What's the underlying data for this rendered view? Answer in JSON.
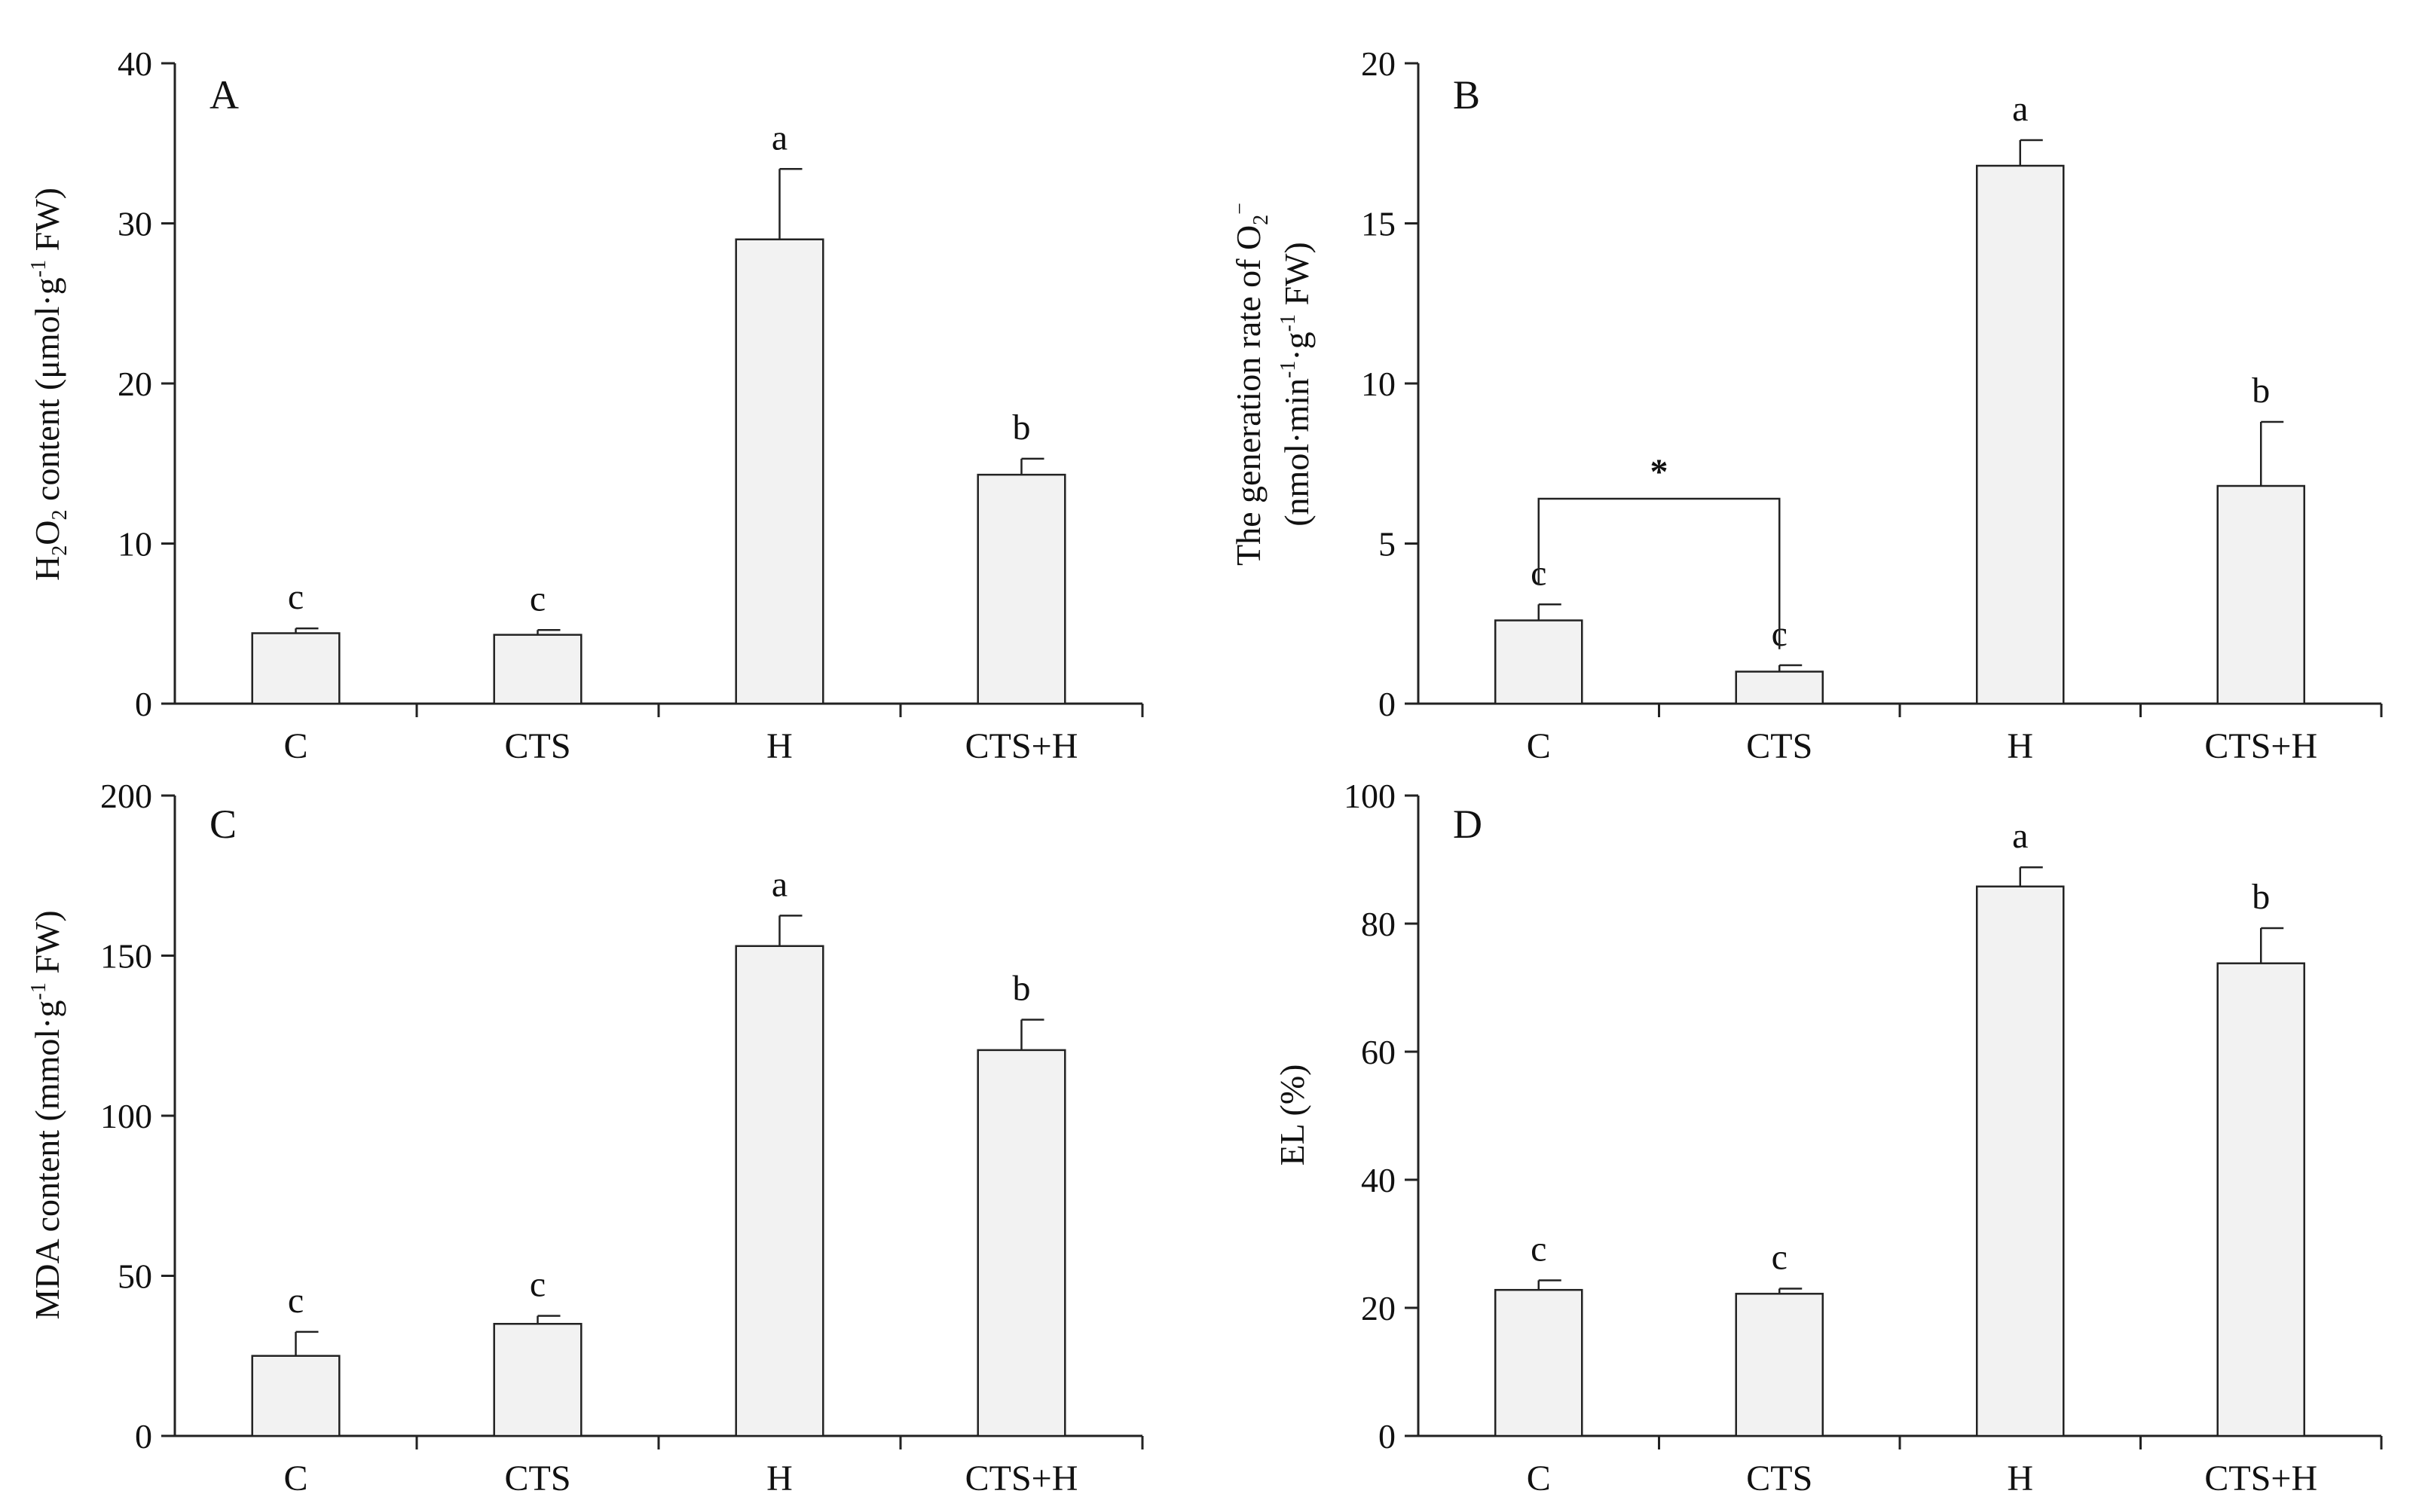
{
  "colors": {
    "bar_fill": "#f2f2f2",
    "stroke": "#222222"
  },
  "chart_data": [
    {
      "panel": "A",
      "type": "bar",
      "categories": [
        "C",
        "CTS",
        "H",
        "CTS+H"
      ],
      "values": [
        4.4,
        4.3,
        29.0,
        14.3
      ],
      "errors": [
        0.3,
        0.3,
        4.4,
        1.0
      ],
      "significance": [
        "c",
        "c",
        "a",
        "b"
      ],
      "ylim": [
        0,
        40
      ],
      "yticks": [
        0,
        10,
        20,
        30,
        40
      ],
      "ylabel": {
        "pre": "H",
        "sub": "2",
        "mid": "O",
        "sub2": "2",
        "post": " content (μmol·g",
        "sup": "-1",
        "end": " FW)"
      }
    },
    {
      "panel": "B",
      "type": "bar",
      "categories": [
        "C",
        "CTS",
        "H",
        "CTS+H"
      ],
      "values": [
        2.6,
        1.0,
        16.8,
        6.8
      ],
      "errors": [
        0.5,
        0.2,
        0.8,
        2.0
      ],
      "significance": [
        "c",
        "c",
        "a",
        "b"
      ],
      "ylim": [
        0,
        20
      ],
      "yticks": [
        0,
        5,
        10,
        15,
        20
      ],
      "bracket": {
        "from": 0,
        "to": 1,
        "label": "*"
      },
      "ylabel_line1": {
        "text": "The generation rate of O",
        "sub": "2",
        "sup": "−"
      },
      "ylabel_line2": {
        "a": "(nmol·min",
        "sup1": "-1",
        "b": "·g",
        "sup2": "-1",
        "c": " FW)"
      }
    },
    {
      "panel": "C",
      "type": "bar",
      "categories": [
        "C",
        "CTS",
        "H",
        "CTS+H"
      ],
      "values": [
        25.0,
        35.0,
        153.0,
        120.5
      ],
      "errors": [
        7.5,
        2.5,
        9.5,
        9.5
      ],
      "significance": [
        "c",
        "c",
        "a",
        "b"
      ],
      "ylim": [
        0,
        200
      ],
      "yticks": [
        0,
        50,
        100,
        150,
        200
      ],
      "ylabel": {
        "text": "MDA content (mmol·g",
        "sup": "-1",
        "end": " FW)"
      }
    },
    {
      "panel": "D",
      "type": "bar",
      "categories": [
        "C",
        "CTS",
        "H",
        "CTS+H"
      ],
      "values": [
        22.8,
        22.2,
        85.8,
        73.8
      ],
      "errors": [
        1.5,
        0.8,
        3.0,
        5.5
      ],
      "significance": [
        "c",
        "c",
        "a",
        "b"
      ],
      "ylim": [
        0,
        100
      ],
      "yticks": [
        0,
        20,
        40,
        60,
        80,
        100
      ],
      "ylabel": {
        "text": "EL (%)"
      }
    }
  ]
}
